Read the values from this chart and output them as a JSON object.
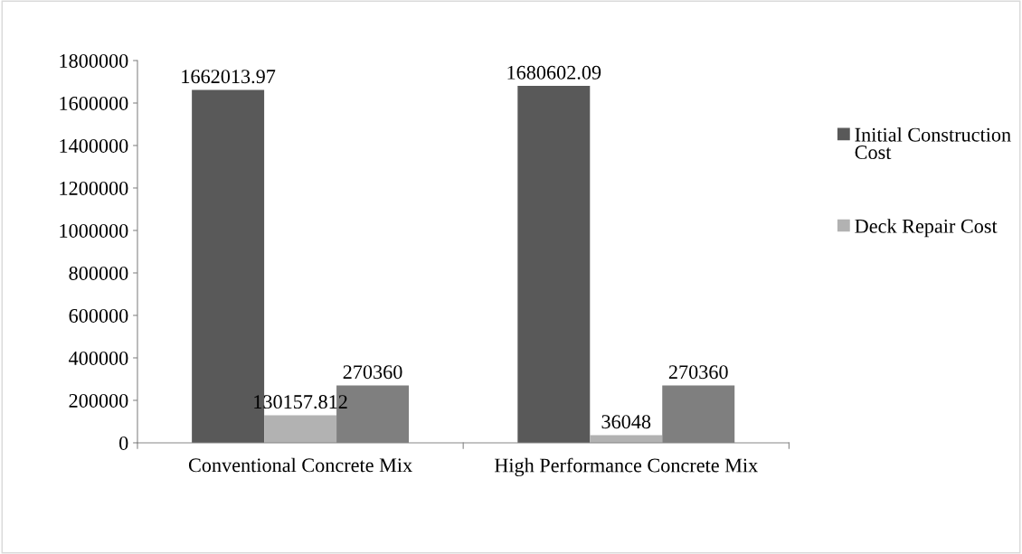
{
  "chart_data": {
    "type": "bar",
    "categories": [
      "Conventional Concrete Mix",
      "High Performance Concrete Mix"
    ],
    "series": [
      {
        "name": "Initial Construction Cost",
        "color": "#595959",
        "values": [
          1662013.97,
          1680602.09
        ]
      },
      {
        "name": "Deck Repair Cost",
        "color": "#b2b2b2",
        "values": [
          130157.812,
          36048
        ]
      },
      {
        "color": "#7f7f7f",
        "values": [
          270360,
          270360
        ]
      }
    ],
    "ylim": [
      0,
      1800000
    ],
    "yticks": [
      0,
      200000,
      400000,
      600000,
      800000,
      1000000,
      1200000,
      1400000,
      1600000,
      1800000
    ],
    "data_labels": true,
    "legend": "right",
    "grid": false
  }
}
